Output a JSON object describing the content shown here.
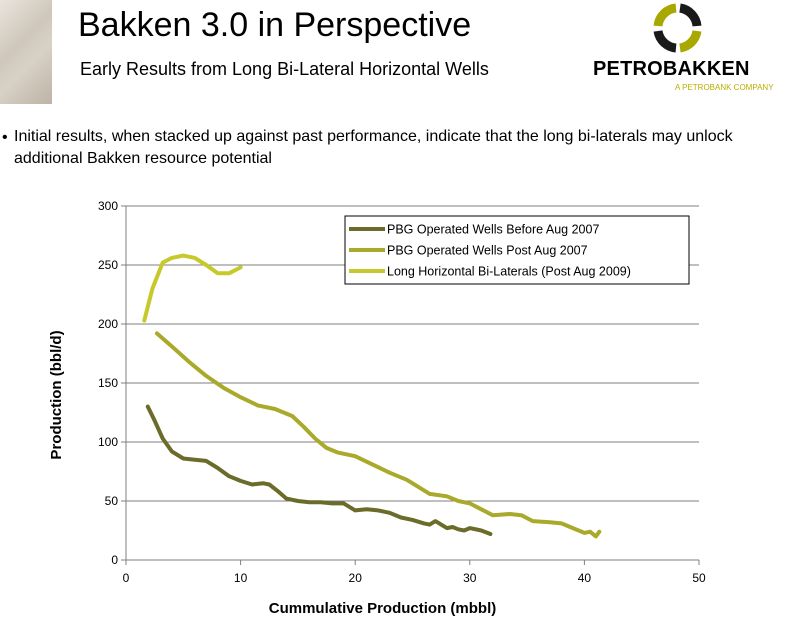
{
  "header": {
    "title": "Bakken 3.0 in Perspective",
    "subtitle": "Early Results from Long Bi-Lateral Horizontal Wells",
    "logo_name": "PETROBAKKEN",
    "logo_tagline": "A PETROBANK COMPANY"
  },
  "bullet": {
    "marker": "•",
    "text": "Initial results, when stacked up against past performance, indicate that the long bi-laterals may unlock additional Bakken resource potential"
  },
  "colors": {
    "logo_accent": "#a8a800",
    "logo_dark": "#1a1a1a"
  },
  "chart_data": {
    "type": "line",
    "xlabel": "Cummulative Production (mbbl)",
    "ylabel": "Production (bbl/d)",
    "xlim": [
      0,
      50
    ],
    "ylim": [
      0,
      300
    ],
    "xticks": [
      0,
      10,
      20,
      30,
      40,
      50
    ],
    "yticks": [
      0,
      50,
      100,
      150,
      200,
      250,
      300
    ],
    "x_tick_labels": [
      "0",
      "10",
      "20",
      "30",
      "40",
      "50"
    ],
    "y_tick_labels": [
      "0",
      "50",
      "100",
      "150",
      "200",
      "250",
      "300"
    ],
    "grid": "horizontal",
    "legend_position": "top-right",
    "series": [
      {
        "name": "PBG Operated Wells Before Aug 2007",
        "color": "#6b6b2a",
        "x": [
          1.9,
          2.5,
          3.2,
          4.0,
          5.0,
          6.0,
          7.0,
          8.0,
          9.0,
          10.0,
          11.0,
          12.0,
          12.5,
          13.3,
          14.0,
          15.0,
          16.0,
          17.0,
          18.0,
          19.0,
          20.0,
          21.0,
          22.0,
          23.0,
          24.0,
          25.0,
          26.0,
          26.5,
          27.0,
          28.0,
          28.5,
          29.0,
          29.5,
          30.0,
          31.0,
          31.8
        ],
        "y": [
          130,
          118,
          103,
          92,
          86,
          85,
          84,
          78,
          71,
          67,
          64,
          65,
          64,
          58,
          52,
          50,
          49,
          49,
          48,
          48,
          42,
          43,
          42,
          40,
          36,
          34,
          31,
          30,
          33,
          27,
          28,
          26,
          25,
          27,
          25,
          22
        ]
      },
      {
        "name": "PBG Operated Wells Post Aug 2007",
        "color": "#a9aa2b",
        "x": [
          2.7,
          4.0,
          5.5,
          7.0,
          8.5,
          10.0,
          11.5,
          13.0,
          14.5,
          15.5,
          16.5,
          17.5,
          18.5,
          20.0,
          21.5,
          23.0,
          24.5,
          25.5,
          26.5,
          28.0,
          29.0,
          30.0,
          31.0,
          32.0,
          33.5,
          34.5,
          35.5,
          37.0,
          38.0,
          39.0,
          40.0,
          40.5,
          41.0,
          41.3
        ],
        "y": [
          192,
          181,
          168,
          156,
          146,
          138,
          131,
          128,
          122,
          113,
          103,
          95,
          91,
          88,
          81,
          74,
          68,
          62,
          56,
          54,
          50,
          48,
          43,
          38,
          39,
          38,
          33,
          32,
          31,
          27,
          23,
          24,
          20,
          24
        ]
      },
      {
        "name": "Long Horizontal Bi-Laterals (Post Aug 2009)",
        "color": "#c7c92a",
        "x": [
          1.6,
          2.3,
          3.2,
          4.0,
          5.0,
          6.0,
          7.0,
          8.0,
          9.0,
          10.0
        ],
        "y": [
          203,
          230,
          252,
          256,
          258,
          256,
          250,
          243,
          243,
          248
        ]
      }
    ]
  }
}
